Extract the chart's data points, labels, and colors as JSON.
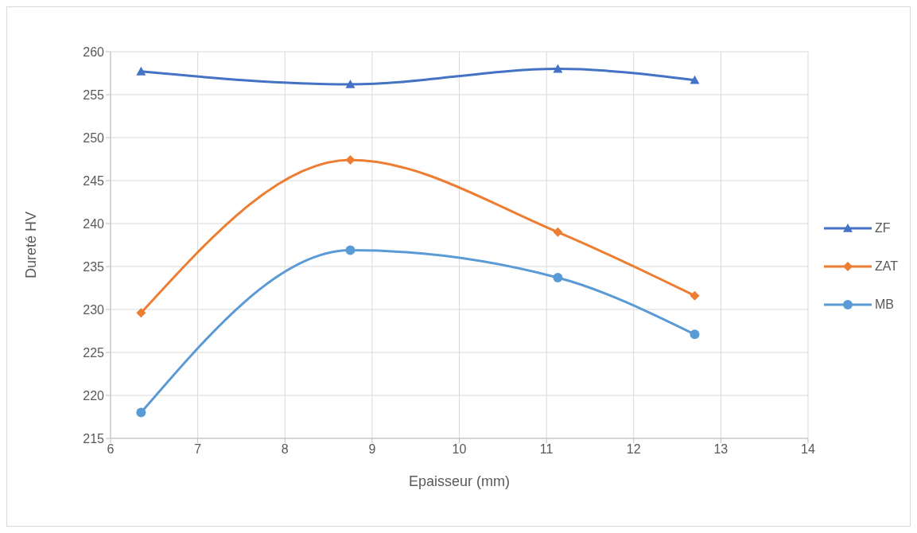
{
  "chart_data": {
    "type": "line",
    "xlabel": "Epaisseur (mm)",
    "ylabel": "Dureté  HV",
    "x": [
      6.35,
      8.75,
      11.13,
      12.7
    ],
    "series": [
      {
        "name": "ZF",
        "color": "#4472c4",
        "marker": "triangle",
        "values": [
          257.7,
          256.2,
          258.0,
          256.7
        ]
      },
      {
        "name": "ZAT",
        "color": "#ed7d31",
        "marker": "diamond",
        "values": [
          229.6,
          247.4,
          239.0,
          231.6
        ]
      },
      {
        "name": "MB",
        "color": "#5b9bd5",
        "marker": "circle",
        "values": [
          218.0,
          236.9,
          233.7,
          227.1
        ]
      }
    ],
    "xlim": [
      6,
      14
    ],
    "xticks": [
      6,
      7,
      8,
      9,
      10,
      11,
      12,
      13,
      14
    ],
    "ylim": [
      215,
      260
    ],
    "yticks": [
      215,
      220,
      225,
      230,
      235,
      240,
      245,
      250,
      255,
      260
    ],
    "grid": true,
    "legend": "right",
    "line_style": "solid"
  }
}
